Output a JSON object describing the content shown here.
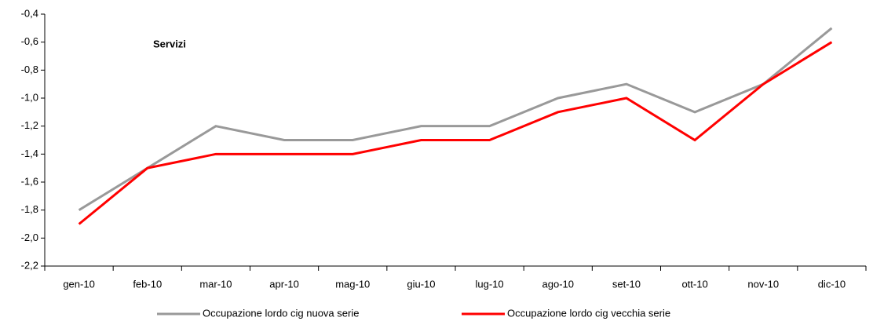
{
  "chart_data": {
    "type": "line",
    "annotation": "Servizi",
    "categories": [
      "gen-10",
      "feb-10",
      "mar-10",
      "apr-10",
      "mag-10",
      "giu-10",
      "lug-10",
      "ago-10",
      "set-10",
      "ott-10",
      "nov-10",
      "dic-10"
    ],
    "series": [
      {
        "name": "Occupazione lordo cig nuova serie",
        "color": "#999999",
        "values": [
          -1.8,
          -1.5,
          -1.2,
          -1.3,
          -1.3,
          -1.2,
          -1.2,
          -1.0,
          -0.9,
          -1.1,
          -0.9,
          -0.5
        ]
      },
      {
        "name": "Occupazione lordo cig vecchia serie",
        "color": "#ff0000",
        "values": [
          -1.9,
          -1.5,
          -1.4,
          -1.4,
          -1.4,
          -1.3,
          -1.3,
          -1.1,
          -1.0,
          -1.3,
          -0.9,
          -0.6
        ]
      }
    ],
    "ylim": [
      -2.2,
      -0.4
    ],
    "yticks": [
      {
        "value": -2.2,
        "label": "-2,2"
      },
      {
        "value": -2.0,
        "label": "-2,0"
      },
      {
        "value": -1.8,
        "label": "-1,8"
      },
      {
        "value": -1.6,
        "label": "-1,6"
      },
      {
        "value": -1.4,
        "label": "-1,4"
      },
      {
        "value": -1.2,
        "label": "-1,2"
      },
      {
        "value": -1.0,
        "label": "-1,0"
      },
      {
        "value": -0.8,
        "label": "-0,8"
      },
      {
        "value": -0.6,
        "label": "-0,6"
      },
      {
        "value": -0.4,
        "label": "-0,4"
      }
    ],
    "grid": false,
    "legend": "bottom"
  }
}
